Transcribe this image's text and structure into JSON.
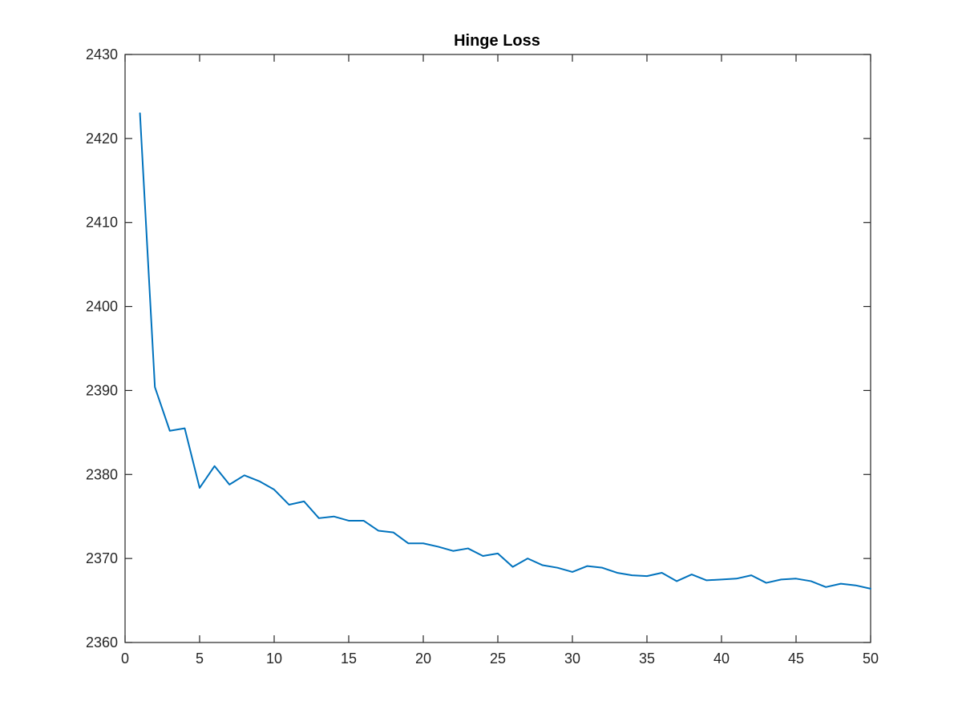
{
  "chart_data": {
    "type": "line",
    "title": "Hinge Loss",
    "xlabel": "",
    "ylabel": "",
    "xlim": [
      0,
      50
    ],
    "ylim": [
      2360,
      2430
    ],
    "xticks": [
      0,
      5,
      10,
      15,
      20,
      25,
      30,
      35,
      40,
      45,
      50
    ],
    "yticks": [
      2360,
      2370,
      2380,
      2390,
      2400,
      2410,
      2420,
      2430
    ],
    "xtick_labels": [
      "0",
      "5",
      "10",
      "15",
      "20",
      "25",
      "30",
      "35",
      "40",
      "45",
      "50"
    ],
    "ytick_labels": [
      "2360",
      "2370",
      "2380",
      "2390",
      "2400",
      "2410",
      "2420",
      "2430"
    ],
    "grid": false,
    "colors": {
      "series": "#0072bd",
      "axes": "#262626"
    },
    "series": [
      {
        "x": [
          1,
          2,
          3,
          4,
          5,
          6,
          7,
          8,
          9,
          10,
          11,
          12,
          13,
          14,
          15,
          16,
          17,
          18,
          19,
          20,
          21,
          22,
          23,
          24,
          25,
          26,
          27,
          28,
          29,
          30,
          31,
          32,
          33,
          34,
          35,
          36,
          37,
          38,
          39,
          40,
          41,
          42,
          43,
          44,
          45,
          46,
          47,
          48,
          49,
          50
        ],
        "values": [
          2423.0,
          2390.4,
          2385.2,
          2385.5,
          2378.4,
          2381.0,
          2378.8,
          2379.9,
          2379.2,
          2378.2,
          2376.4,
          2376.8,
          2374.8,
          2375.0,
          2374.5,
          2374.5,
          2373.3,
          2373.1,
          2371.8,
          2371.8,
          2371.4,
          2370.9,
          2371.2,
          2370.3,
          2370.6,
          2369.0,
          2370.0,
          2369.2,
          2368.9,
          2368.4,
          2369.1,
          2368.9,
          2368.3,
          2368.0,
          2367.9,
          2368.3,
          2367.3,
          2368.1,
          2367.4,
          2367.5,
          2367.6,
          2368.0,
          2367.1,
          2367.5,
          2367.6,
          2367.3,
          2366.6,
          2367.0,
          2366.8,
          2366.4
        ]
      }
    ]
  }
}
